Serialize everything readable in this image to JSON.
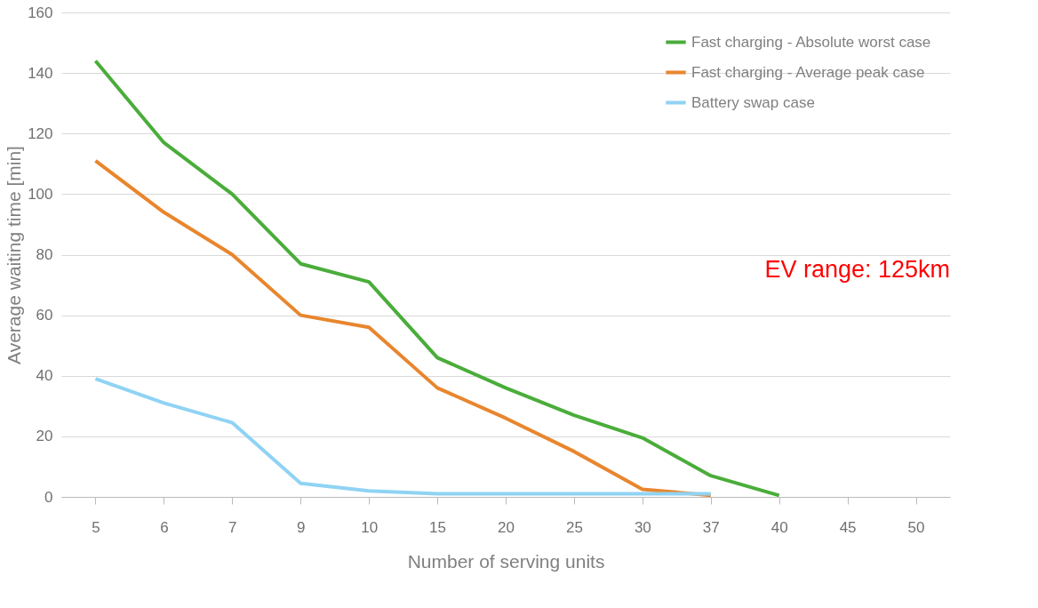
{
  "chart_data": {
    "type": "line",
    "xlabel": "Number of serving units",
    "ylabel": "Average waiting time [min]",
    "categories": [
      "5",
      "6",
      "7",
      "9",
      "10",
      "15",
      "20",
      "25",
      "30",
      "37",
      "40",
      "45",
      "50"
    ],
    "series": [
      {
        "name": "Fast charging - Absolute worst case",
        "color": "#4aad3a",
        "values": [
          144,
          117,
          100,
          77,
          71,
          46,
          36,
          27,
          19.5,
          7,
          0.5,
          null,
          null
        ]
      },
      {
        "name": "Fast charging - Average peak case",
        "color": "#e8862e",
        "values": [
          111,
          94,
          80,
          60,
          56,
          36,
          26,
          15,
          2.5,
          0.5,
          null,
          null,
          null
        ]
      },
      {
        "name": "Battery swap case",
        "color": "#8fd3f4",
        "values": [
          39,
          31,
          24.5,
          4.5,
          2,
          1,
          1,
          1,
          1,
          1,
          null,
          null,
          null
        ]
      }
    ],
    "ylim": [
      0,
      160
    ],
    "yticks": [
      0,
      20,
      40,
      60,
      80,
      100,
      120,
      140,
      160
    ],
    "grid": "y",
    "legend": "top right",
    "marker": "none",
    "line_style": "solid",
    "annotations": [
      "EV range: 125km"
    ]
  }
}
